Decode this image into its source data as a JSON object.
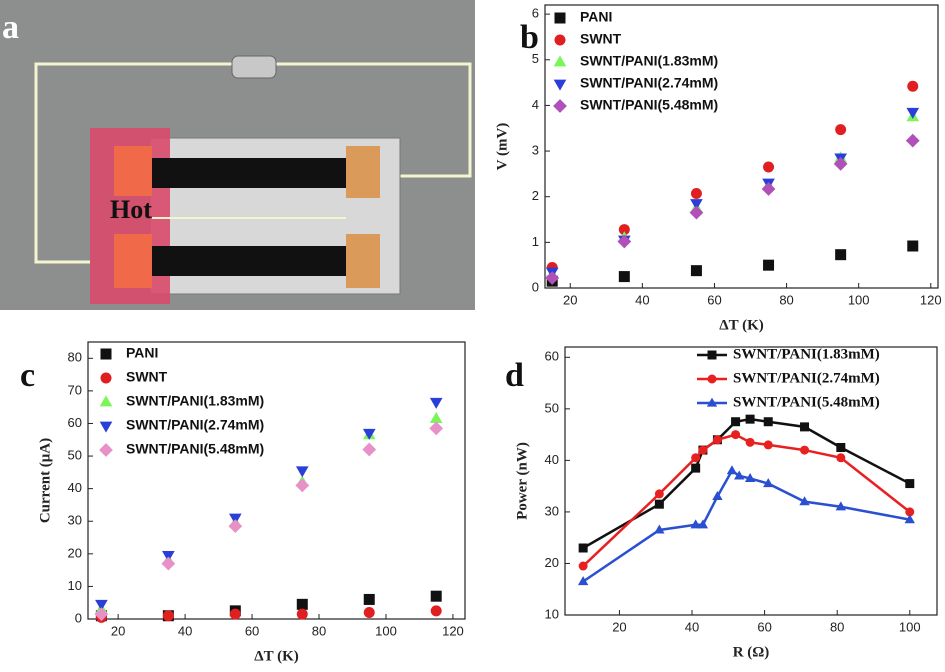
{
  "photo": {
    "panel_label": "a",
    "label": "Hot"
  },
  "chart_data": [
    {
      "type": "scatter",
      "panel_label": "b",
      "x_label": "ΔT (K)",
      "y_label": "V (mV)",
      "x": [
        15,
        35,
        55,
        75,
        95,
        115
      ],
      "xlim": [
        13,
        122
      ],
      "xticks": [
        20,
        40,
        60,
        80,
        100,
        120
      ],
      "ylim": [
        0,
        6.2
      ],
      "yticks": [
        0,
        1,
        2,
        3,
        4,
        5,
        6
      ],
      "legend": "upper left",
      "series": [
        {
          "name": "PANI",
          "color": "#111111",
          "marker": "square",
          "values": [
            0.15,
            0.25,
            0.38,
            0.5,
            0.73,
            0.92
          ]
        },
        {
          "name": "SWNT",
          "color": "#e02020",
          "marker": "circle",
          "values": [
            0.45,
            1.28,
            2.07,
            2.65,
            3.47,
            4.42
          ]
        },
        {
          "name": "SWNT/PANI(1.83mM)",
          "color": "#7cf55a",
          "marker": "triangle-up",
          "values": [
            0.3,
            1.1,
            1.75,
            2.25,
            2.85,
            3.75
          ]
        },
        {
          "name": "SWNT/PANI(2.74mM)",
          "color": "#2a3fd8",
          "marker": "triangle-down",
          "values": [
            0.35,
            1.05,
            1.85,
            2.3,
            2.85,
            3.85
          ]
        },
        {
          "name": "SWNT/PANI(5.48mM)",
          "color": "#b050b8",
          "marker": "diamond",
          "values": [
            0.22,
            1.02,
            1.65,
            2.17,
            2.72,
            3.23
          ]
        }
      ]
    },
    {
      "type": "scatter",
      "panel_label": "c",
      "x_label": "ΔT (K)",
      "y_label": "Current (μA)",
      "x": [
        15,
        35,
        55,
        75,
        95,
        115
      ],
      "xlim": [
        11,
        123.6
      ],
      "xticks": [
        20,
        40,
        60,
        80,
        100,
        120
      ],
      "ylim": [
        0,
        85
      ],
      "yticks": [
        0,
        10,
        20,
        30,
        40,
        50,
        60,
        70,
        80
      ],
      "legend": "upper left",
      "series": [
        {
          "name": "PANI",
          "color": "#111111",
          "marker": "square",
          "values": [
            1,
            1,
            2.5,
            4.5,
            6,
            7
          ]
        },
        {
          "name": "SWNT",
          "color": "#e02020",
          "marker": "circle",
          "values": [
            0.5,
            1,
            1.5,
            1.5,
            2,
            2.5
          ]
        },
        {
          "name": "SWNT/PANI(1.83mM)",
          "color": "#7cf55a",
          "marker": "triangle-up",
          "values": [
            3,
            18,
            29.5,
            42,
            56.5,
            61.5
          ]
        },
        {
          "name": "SWNT/PANI(2.74mM)",
          "color": "#2a3fd8",
          "marker": "triangle-down",
          "values": [
            4.5,
            19.5,
            31,
            45.5,
            57,
            66.5
          ]
        },
        {
          "name": "SWNT/PANI(5.48mM)",
          "color": "#e890c8",
          "marker": "diamond",
          "values": [
            1.5,
            17,
            28.5,
            41,
            52,
            58.5
          ]
        }
      ]
    },
    {
      "type": "line",
      "panel_label": "d",
      "x_label": "R (Ω)",
      "y_label": "Power (nW)",
      "xlim": [
        5,
        107.5
      ],
      "xticks": [
        20,
        40,
        60,
        80,
        100
      ],
      "ylim": [
        10,
        62
      ],
      "yticks": [
        10,
        20,
        30,
        40,
        50,
        60
      ],
      "legend": "upper right",
      "series": [
        {
          "name": "SWNT/PANI(1.83mM)",
          "color": "#111111",
          "marker": "square",
          "x": [
            10,
            31,
            41,
            43,
            47,
            52,
            56,
            61,
            71,
            81,
            100
          ],
          "values": [
            23,
            31.5,
            38.5,
            42,
            44,
            47.5,
            48,
            47.5,
            46.5,
            42.5,
            35.5
          ]
        },
        {
          "name": "SWNT/PANI(2.74mM)",
          "color": "#e82020",
          "marker": "circle",
          "x": [
            10,
            31,
            41,
            43,
            47,
            52,
            56,
            61,
            71,
            81,
            100
          ],
          "values": [
            19.5,
            33.5,
            40.5,
            42,
            44,
            45,
            43.5,
            43,
            42,
            40.5,
            30
          ]
        },
        {
          "name": "SWNT/PANI(5.48mM)",
          "color": "#2a4fd0",
          "marker": "triangle-up",
          "x": [
            10,
            31,
            41,
            43,
            47,
            51,
            53,
            56,
            61,
            71,
            81,
            100
          ],
          "values": [
            16.5,
            26.5,
            27.5,
            27.5,
            33,
            38,
            37,
            36.5,
            35.5,
            32,
            31,
            28.5
          ]
        }
      ]
    }
  ]
}
